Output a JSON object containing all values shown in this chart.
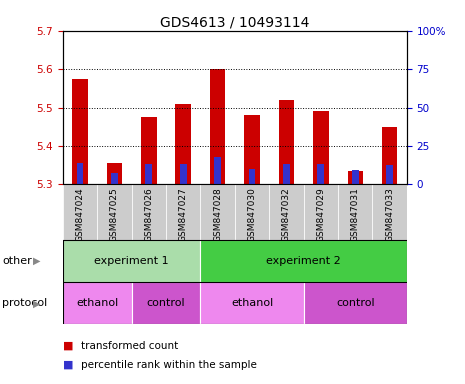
{
  "title": "GDS4613 / 10493114",
  "samples": [
    "GSM847024",
    "GSM847025",
    "GSM847026",
    "GSM847027",
    "GSM847028",
    "GSM847030",
    "GSM847032",
    "GSM847029",
    "GSM847031",
    "GSM847033"
  ],
  "bar_tops": [
    5.575,
    5.355,
    5.475,
    5.51,
    5.6,
    5.48,
    5.52,
    5.49,
    5.335,
    5.45
  ],
  "blue_tops": [
    5.355,
    5.33,
    5.353,
    5.353,
    5.372,
    5.34,
    5.353,
    5.353,
    5.337,
    5.35
  ],
  "bar_bottom": 5.3,
  "ylim_left": [
    5.3,
    5.7
  ],
  "ylim_right": [
    0,
    100
  ],
  "yticks_left": [
    5.3,
    5.4,
    5.5,
    5.6,
    5.7
  ],
  "yticks_right": [
    0,
    25,
    50,
    75,
    100
  ],
  "yticks_right_labels": [
    "0",
    "25",
    "50",
    "75",
    "100%"
  ],
  "groups_other": [
    {
      "label": "experiment 1",
      "start": 0,
      "end": 4,
      "color": "#aaddaa"
    },
    {
      "label": "experiment 2",
      "start": 4,
      "end": 10,
      "color": "#44cc44"
    }
  ],
  "groups_protocol": [
    {
      "label": "ethanol",
      "start": 0,
      "end": 2,
      "color": "#ee88ee"
    },
    {
      "label": "control",
      "start": 2,
      "end": 4,
      "color": "#cc55cc"
    },
    {
      "label": "ethanol",
      "start": 4,
      "end": 7,
      "color": "#ee88ee"
    },
    {
      "label": "control",
      "start": 7,
      "end": 10,
      "color": "#cc55cc"
    }
  ],
  "bar_color": "#cc0000",
  "blue_color": "#3333cc",
  "bar_width": 0.45,
  "blue_bar_width": 0.2,
  "tick_color_left": "#cc0000",
  "tick_color_right": "#0000cc",
  "sample_bg_color": "#cccccc",
  "legend_items": [
    {
      "label": "transformed count",
      "color": "#cc0000"
    },
    {
      "label": "percentile rank within the sample",
      "color": "#3333cc"
    }
  ],
  "row_labels": [
    "other",
    "protocol"
  ],
  "title_fontsize": 10,
  "tick_fontsize": 7.5,
  "sample_fontsize": 6.5,
  "group_fontsize": 8,
  "legend_fontsize": 7.5
}
